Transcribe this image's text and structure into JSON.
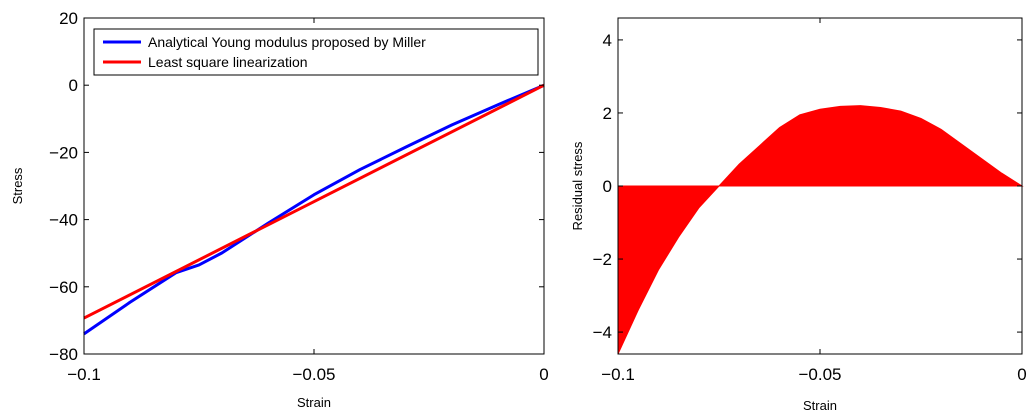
{
  "chart_data": [
    {
      "type": "line",
      "xlabel": "Strain",
      "ylabel": "Stress",
      "xlim": [
        -0.1,
        0
      ],
      "ylim": [
        -80,
        20
      ],
      "xticks": [
        -0.1,
        -0.05,
        0
      ],
      "xtick_labels": [
        "−0.1",
        "−0.05",
        "0"
      ],
      "yticks": [
        -80,
        -60,
        -40,
        -20,
        0,
        20
      ],
      "ytick_labels": [
        "−80",
        "−60",
        "−40",
        "−20",
        "0",
        "20"
      ],
      "grid": false,
      "legend_position": "top-left",
      "series": [
        {
          "name": "Analytical Young modulus proposed by Miller",
          "color": "#0000ff",
          "x": [
            -0.1,
            -0.09,
            -0.08,
            -0.075,
            -0.07,
            -0.06,
            -0.05,
            -0.04,
            -0.03,
            -0.02,
            -0.01,
            0
          ],
          "y": [
            -74,
            -64.6,
            -55.8,
            -53.5,
            -49.9,
            -41.1,
            -32.6,
            -25.1,
            -18.4,
            -11.8,
            -5.8,
            0
          ]
        },
        {
          "name": "Least square linearization",
          "color": "#ff0000",
          "x": [
            -0.1,
            0
          ],
          "y": [
            -69.3,
            0
          ]
        }
      ]
    },
    {
      "type": "area",
      "xlabel": "Strain",
      "ylabel": "Residual stress",
      "xlim": [
        -0.1,
        0
      ],
      "ylim": [
        -4.6,
        4.6
      ],
      "xticks": [
        -0.1,
        -0.05,
        0
      ],
      "xtick_labels": [
        "−0.1",
        "−0.05",
        "0"
      ],
      "yticks": [
        -4,
        -2,
        0,
        2,
        4
      ],
      "ytick_labels": [
        "−4",
        "−2",
        "0",
        "2",
        "4"
      ],
      "grid": false,
      "series": [
        {
          "color": "#ff0000",
          "x": [
            -0.1,
            -0.095,
            -0.09,
            -0.085,
            -0.08,
            -0.075,
            -0.07,
            -0.065,
            -0.06,
            -0.055,
            -0.05,
            -0.045,
            -0.04,
            -0.035,
            -0.03,
            -0.025,
            -0.02,
            -0.015,
            -0.01,
            -0.005,
            0
          ],
          "y": [
            -4.6,
            -3.4,
            -2.3,
            -1.4,
            -0.6,
            0.0,
            0.6,
            1.1,
            1.6,
            1.95,
            2.1,
            2.18,
            2.2,
            2.15,
            2.05,
            1.85,
            1.55,
            1.15,
            0.75,
            0.35,
            0.0
          ]
        }
      ]
    }
  ]
}
